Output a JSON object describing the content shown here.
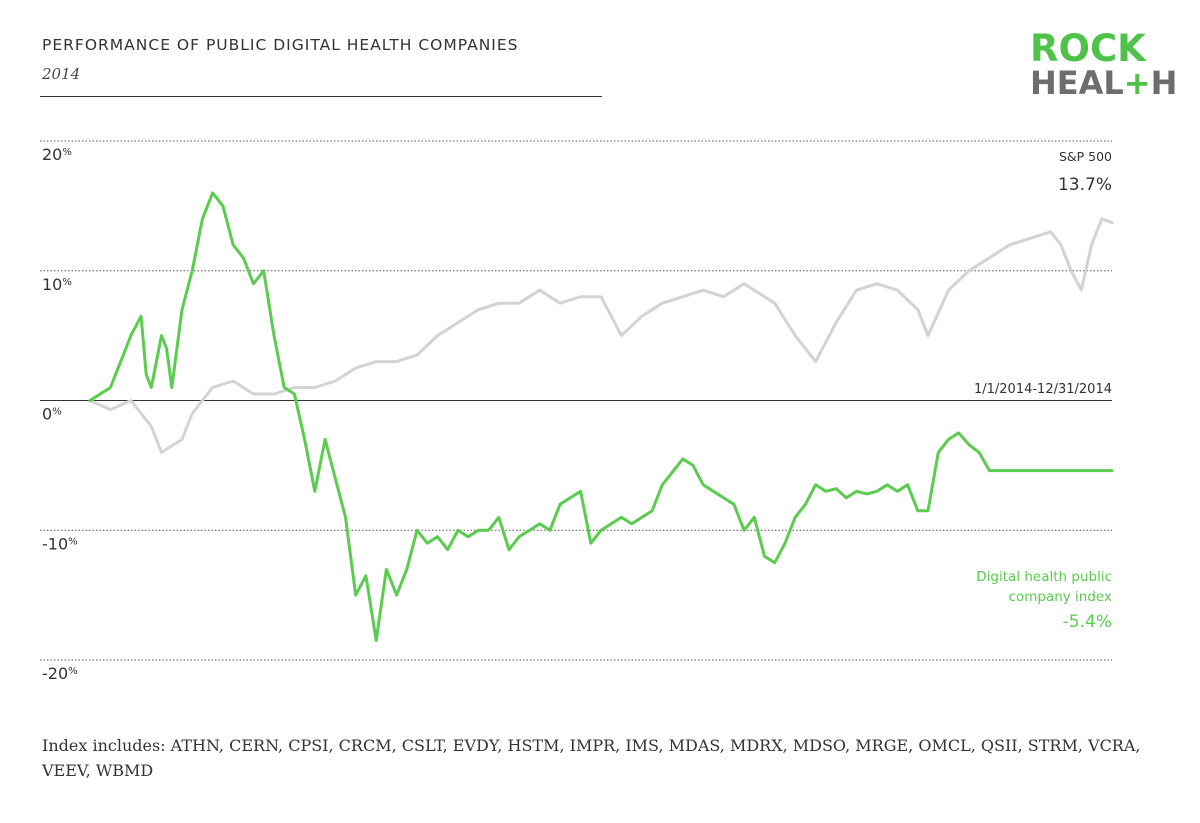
{
  "header": {
    "title": "PERFORMANCE OF PUBLIC DIGITAL HEALTH COMPANIES",
    "subtitle": "2014"
  },
  "logo": {
    "line1": "ROCK",
    "line2_prefix": "HEAL",
    "line2_plus": "+",
    "line2_suffix": "H",
    "colors": {
      "green": "#4fc24a",
      "gray": "#6d6d6d"
    }
  },
  "footnote": "Index includes: ATHN, CERN, CPSI, CRCM, CSLT, EVDY, HSTM, IMPR, IMS, MDAS, MDRX, MDSO, MRGE, OMCL, QSII, STRM, VCRA, VEEV, WBMD",
  "chart_data": {
    "type": "line",
    "title": "PERFORMANCE OF PUBLIC DIGITAL HEALTH COMPANIES",
    "subtitle": "2014",
    "ylim": [
      -20,
      20
    ],
    "ytick_values": [
      20,
      10,
      0,
      -10,
      -20
    ],
    "ytick_labels": [
      {
        "num": "20",
        "unit": "%"
      },
      {
        "num": "10",
        "unit": "%"
      },
      {
        "num": "0",
        "unit": "%"
      },
      {
        "num": "-10",
        "unit": "%"
      },
      {
        "num": "-20",
        "unit": "%"
      }
    ],
    "xlim": [
      0,
      1
    ],
    "zero_line_label": "1/1/2014-12/31/2014",
    "grid": true,
    "series": [
      {
        "name": "S&P 500",
        "end_label": "13.7%",
        "color": "#d3d3d3",
        "x": [
          0,
          0.02,
          0.04,
          0.06,
          0.07,
          0.09,
          0.1,
          0.11,
          0.12,
          0.14,
          0.16,
          0.18,
          0.2,
          0.22,
          0.24,
          0.26,
          0.28,
          0.3,
          0.32,
          0.34,
          0.36,
          0.38,
          0.4,
          0.42,
          0.44,
          0.46,
          0.48,
          0.5,
          0.52,
          0.54,
          0.56,
          0.58,
          0.6,
          0.62,
          0.64,
          0.65,
          0.67,
          0.69,
          0.71,
          0.73,
          0.75,
          0.77,
          0.79,
          0.81,
          0.82,
          0.84,
          0.86,
          0.88,
          0.9,
          0.92,
          0.94,
          0.95,
          0.96,
          0.97,
          0.98,
          0.99,
          1.0
        ],
        "y": [
          0.0,
          -0.7,
          0.0,
          -2.0,
          -4.0,
          -3.0,
          -1.0,
          0.0,
          1.0,
          1.5,
          0.5,
          0.5,
          1.0,
          1.0,
          1.5,
          2.5,
          3.0,
          3.0,
          3.5,
          5.0,
          6.0,
          7.0,
          7.5,
          7.5,
          8.5,
          7.5,
          8.0,
          8.0,
          5.0,
          6.5,
          7.5,
          8.0,
          8.5,
          8.0,
          9.0,
          8.5,
          7.5,
          5.0,
          3.0,
          6.0,
          8.5,
          9.0,
          8.5,
          7.0,
          5.0,
          8.5,
          10.0,
          11.0,
          12.0,
          12.5,
          13.0,
          12.0,
          10.0,
          8.5,
          12.0,
          14.0,
          13.7
        ]
      },
      {
        "name": "Digital health public company index",
        "end_label": "-5.4%",
        "color": "#5bcc4f",
        "x": [
          0,
          0.01,
          0.02,
          0.03,
          0.04,
          0.05,
          0.055,
          0.06,
          0.07,
          0.075,
          0.08,
          0.09,
          0.1,
          0.11,
          0.12,
          0.13,
          0.14,
          0.15,
          0.16,
          0.17,
          0.18,
          0.19,
          0.2,
          0.21,
          0.22,
          0.23,
          0.24,
          0.25,
          0.26,
          0.27,
          0.28,
          0.29,
          0.3,
          0.31,
          0.32,
          0.33,
          0.34,
          0.35,
          0.36,
          0.37,
          0.38,
          0.39,
          0.4,
          0.41,
          0.42,
          0.43,
          0.44,
          0.45,
          0.46,
          0.47,
          0.48,
          0.49,
          0.5,
          0.51,
          0.52,
          0.53,
          0.54,
          0.55,
          0.56,
          0.57,
          0.58,
          0.59,
          0.6,
          0.61,
          0.62,
          0.63,
          0.64,
          0.65,
          0.66,
          0.67,
          0.68,
          0.69,
          0.7,
          0.71,
          0.72,
          0.73,
          0.74,
          0.75,
          0.76,
          0.77,
          0.78,
          0.79,
          0.8,
          0.81,
          0.82,
          0.83,
          0.84,
          0.85,
          0.86,
          0.87,
          0.88,
          0.89,
          0.9,
          0.91,
          0.92,
          0.93,
          0.94,
          0.95,
          0.96,
          0.97,
          0.98,
          0.99,
          1.0
        ],
        "y": [
          0.0,
          0.5,
          1.0,
          3.0,
          5.0,
          6.5,
          2.0,
          1.0,
          5.0,
          4.0,
          1.0,
          7.0,
          10.0,
          14.0,
          16.0,
          15.0,
          12.0,
          11.0,
          9.0,
          10.0,
          5.0,
          1.0,
          0.5,
          -3.0,
          -7.0,
          -3.0,
          -6.0,
          -9.0,
          -15.0,
          -13.5,
          -18.5,
          -13.0,
          -15.0,
          -13.0,
          -10.0,
          -11.0,
          -10.5,
          -11.5,
          -10.0,
          -10.5,
          -10.0,
          -10.0,
          -9.0,
          -11.5,
          -10.5,
          -10.0,
          -9.5,
          -10.0,
          -8.0,
          -7.5,
          -7.0,
          -11.0,
          -10.0,
          -9.5,
          -9.0,
          -9.5,
          -9.0,
          -8.5,
          -6.5,
          -5.5,
          -4.5,
          -5.0,
          -6.5,
          -7.0,
          -7.5,
          -8.0,
          -10.0,
          -9.0,
          -12.0,
          -12.5,
          -11.0,
          -9.0,
          -8.0,
          -6.5,
          -7.0,
          -6.8,
          -7.5,
          -7.0,
          -7.2,
          -7.0,
          -6.5,
          -7.0,
          -6.5,
          -8.5,
          -8.5,
          -4.0,
          -3.0,
          -2.5,
          -3.4,
          -4.0,
          -5.4,
          -5.4,
          -5.4,
          -5.4,
          -5.4,
          -5.4,
          -5.4,
          -5.4,
          -5.4,
          -5.4,
          -5.4,
          -5.4,
          -5.4
        ]
      }
    ]
  }
}
